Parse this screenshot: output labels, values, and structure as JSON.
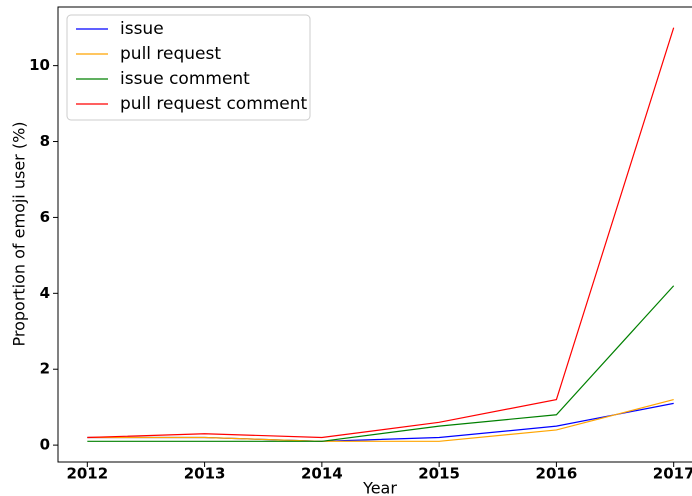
{
  "chart_data": {
    "type": "line",
    "x_label": "Year",
    "y_label": "Proportion of emoji user (%)",
    "x": [
      2012,
      2013,
      2014,
      2015,
      2016,
      2017
    ],
    "series": [
      {
        "name": "issue",
        "color": "#0000ff",
        "values": [
          0.2,
          0.2,
          0.1,
          0.2,
          0.5,
          1.1
        ]
      },
      {
        "name": "pull request",
        "color": "#ffa500",
        "values": [
          0.2,
          0.2,
          0.1,
          0.1,
          0.4,
          1.2
        ]
      },
      {
        "name": "issue comment",
        "color": "#008000",
        "values": [
          0.1,
          0.1,
          0.1,
          0.5,
          0.8,
          4.2
        ]
      },
      {
        "name": "pull request comment",
        "color": "#ff0000",
        "values": [
          0.2,
          0.3,
          0.2,
          0.6,
          1.2,
          11.0
        ]
      }
    ],
    "xlim": [
      2011.75,
      2017.25
    ],
    "xticks": [
      2012,
      2013,
      2014,
      2015,
      2016,
      2017
    ],
    "ylim": [
      -0.445,
      11.545
    ],
    "yticks": [
      0,
      2,
      4,
      6,
      8,
      10
    ],
    "legend": "upper left",
    "grid": false
  }
}
